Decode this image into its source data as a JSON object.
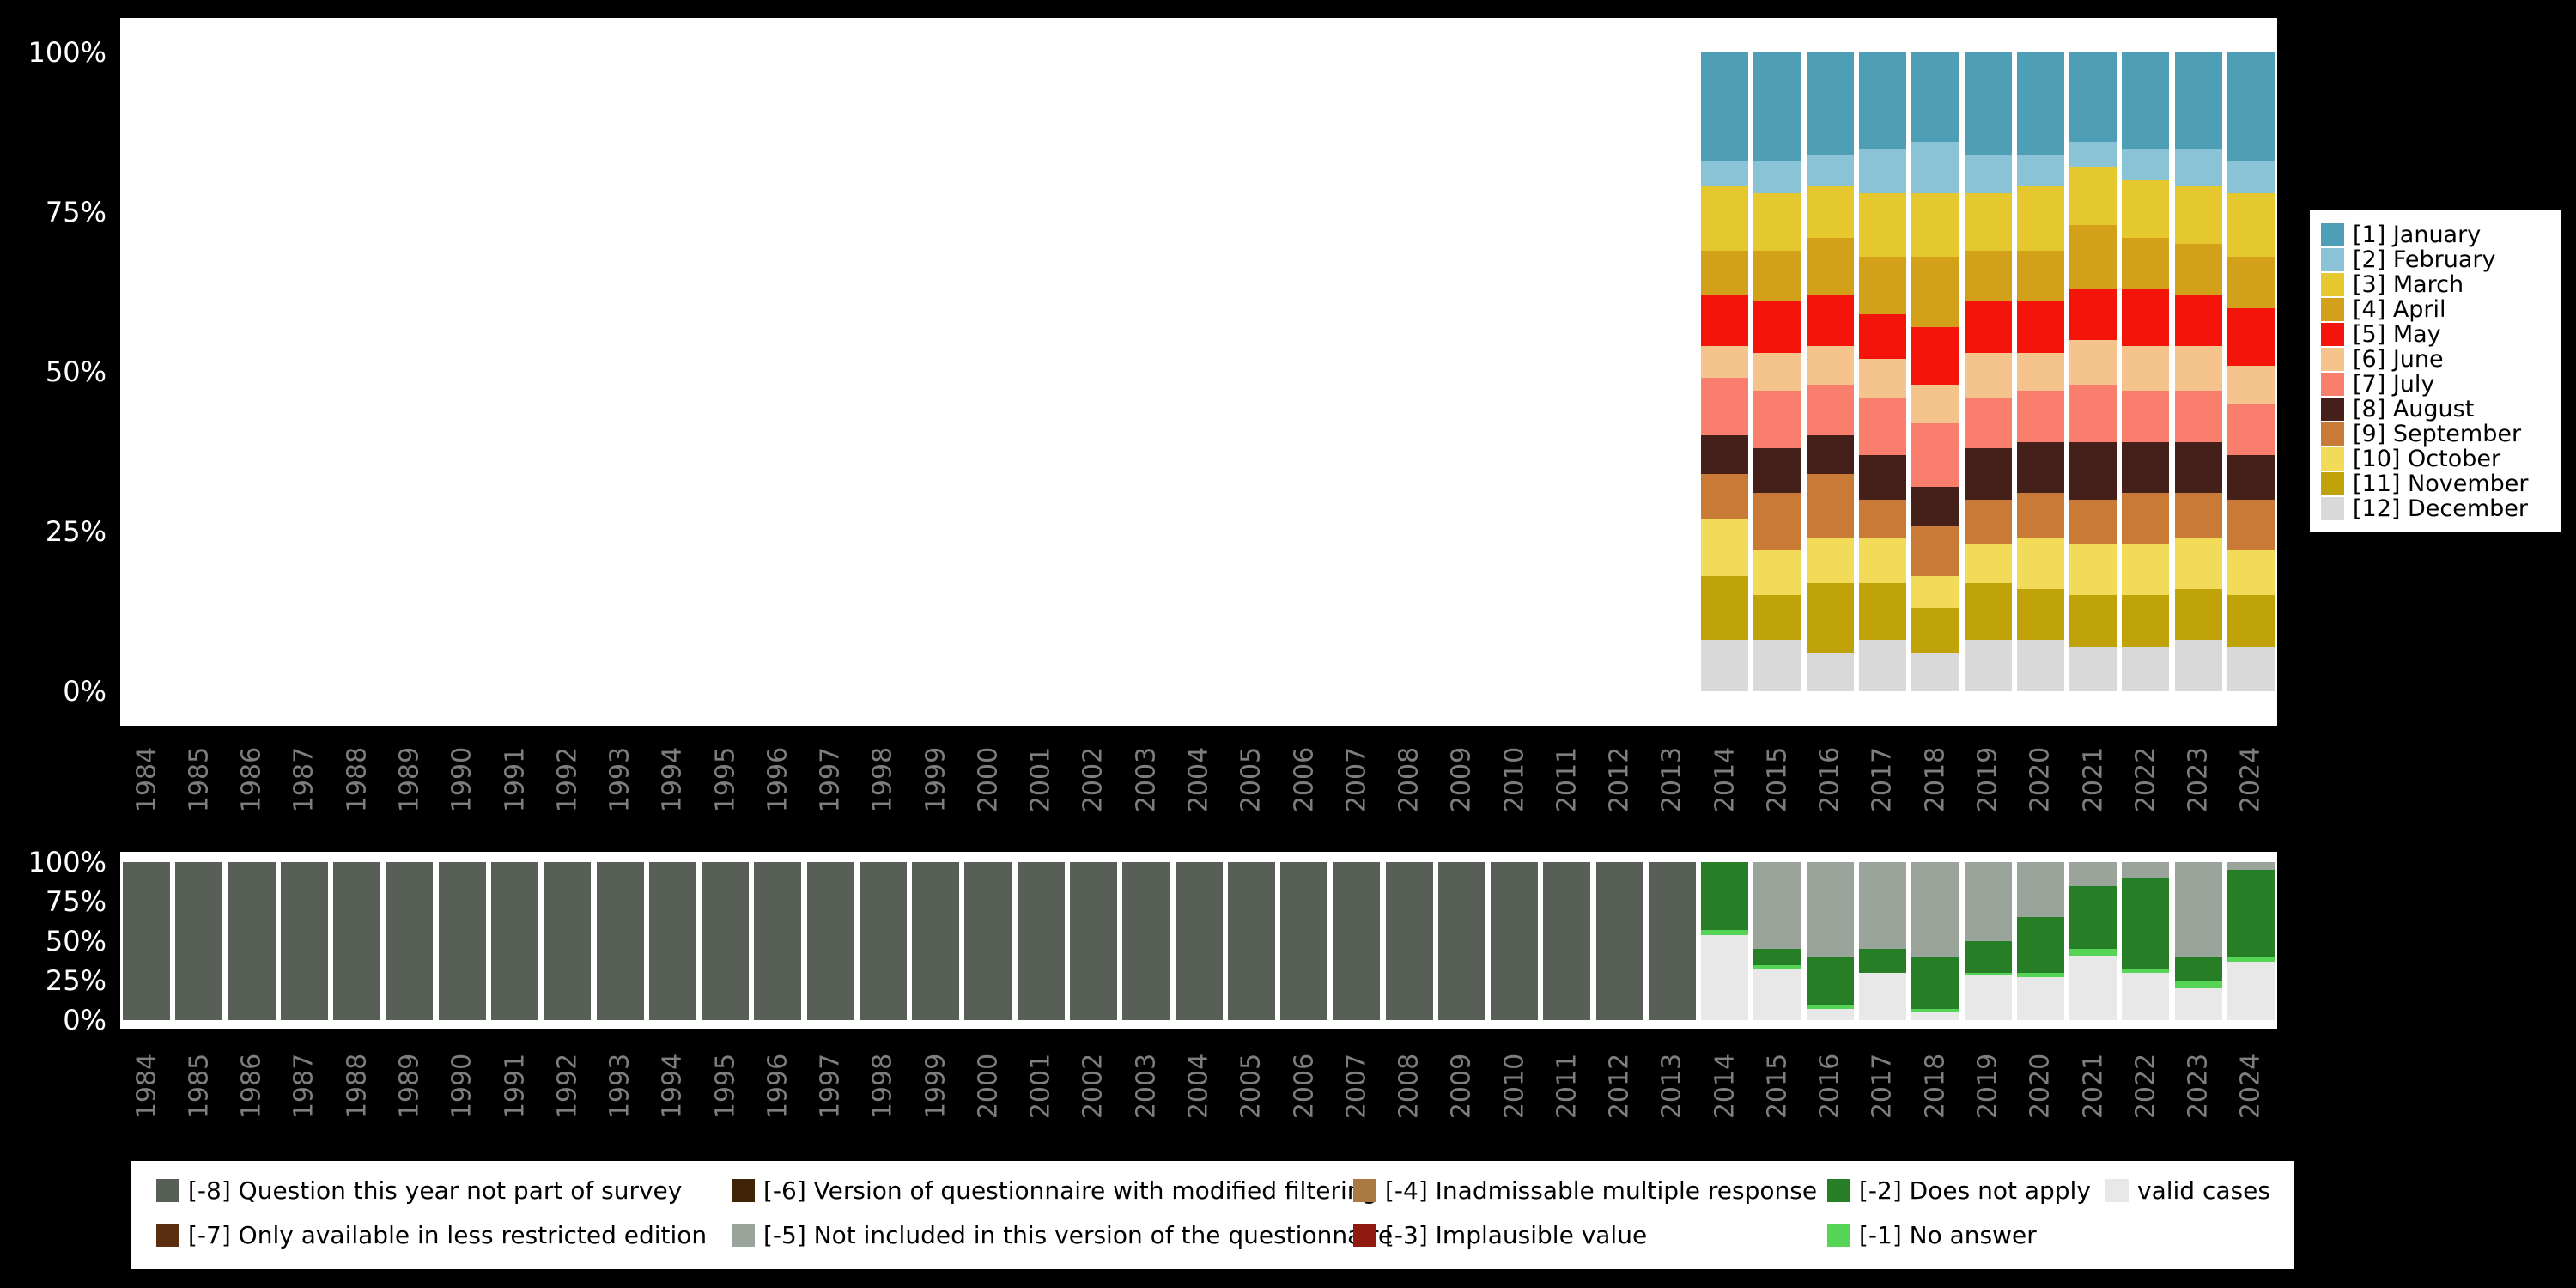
{
  "figure": {
    "background": "#000000",
    "panel_background": "#ffffff",
    "axis_tick_color": "#ffffff",
    "year_label_color": "#7e7e7e"
  },
  "chart_data": [
    {
      "id": "month-distribution",
      "type": "bar",
      "stacked": true,
      "title": "",
      "xlabel": "",
      "ylabel": "",
      "ylim": [
        0,
        100
      ],
      "grid": false,
      "y_tick_labels": [
        "100%",
        "75%",
        "50%",
        "25%",
        "0%"
      ],
      "legend_position": "right",
      "stack_note": "series stacked bottom-to-top in reverse list order (December bottom, January top); years 1984-2013 have no data",
      "categories": [
        "1984",
        "1985",
        "1986",
        "1987",
        "1988",
        "1989",
        "1990",
        "1991",
        "1992",
        "1993",
        "1994",
        "1995",
        "1996",
        "1997",
        "1998",
        "1999",
        "2000",
        "2001",
        "2002",
        "2003",
        "2004",
        "2005",
        "2006",
        "2007",
        "2008",
        "2009",
        "2010",
        "2011",
        "2012",
        "2013",
        "2014",
        "2015",
        "2016",
        "2017",
        "2018",
        "2019",
        "2020",
        "2021",
        "2022",
        "2023",
        "2024"
      ],
      "value_years": [
        "2014",
        "2015",
        "2016",
        "2017",
        "2018",
        "2019",
        "2020",
        "2021",
        "2022",
        "2023",
        "2024"
      ],
      "series": [
        {
          "name": "[1] January",
          "color": "#4E9FB5",
          "values": [
            17,
            17,
            16,
            15,
            14,
            16,
            16,
            14,
            15,
            15,
            17
          ]
        },
        {
          "name": "[2] February",
          "color": "#8BC3D6",
          "values": [
            4,
            5,
            5,
            7,
            8,
            6,
            5,
            4,
            5,
            6,
            5
          ]
        },
        {
          "name": "[3] March",
          "color": "#E5C72E",
          "values": [
            10,
            9,
            8,
            10,
            10,
            9,
            10,
            9,
            9,
            9,
            10
          ]
        },
        {
          "name": "[4] April",
          "color": "#D2A119",
          "values": [
            7,
            8,
            9,
            9,
            11,
            8,
            8,
            10,
            8,
            8,
            8
          ]
        },
        {
          "name": "[5] May",
          "color": "#F5140A",
          "values": [
            8,
            8,
            8,
            7,
            9,
            8,
            8,
            8,
            9,
            8,
            9
          ]
        },
        {
          "name": "[6] June",
          "color": "#F5C48C",
          "values": [
            5,
            6,
            6,
            6,
            6,
            7,
            6,
            7,
            7,
            7,
            6
          ]
        },
        {
          "name": "[7] July",
          "color": "#FA7E6E",
          "values": [
            9,
            9,
            8,
            9,
            10,
            8,
            8,
            9,
            8,
            8,
            8
          ]
        },
        {
          "name": "[8] August",
          "color": "#45201B",
          "values": [
            6,
            7,
            6,
            7,
            6,
            8,
            8,
            9,
            8,
            8,
            7
          ]
        },
        {
          "name": "[9] September",
          "color": "#C97A36",
          "values": [
            7,
            9,
            10,
            6,
            8,
            7,
            7,
            7,
            8,
            7,
            8
          ]
        },
        {
          "name": "[10] October",
          "color": "#F1DB58",
          "values": [
            9,
            7,
            7,
            7,
            5,
            6,
            8,
            8,
            8,
            8,
            7
          ]
        },
        {
          "name": "[11] November",
          "color": "#C0A309",
          "values": [
            10,
            7,
            11,
            9,
            7,
            9,
            8,
            8,
            8,
            8,
            8
          ]
        },
        {
          "name": "[12] December",
          "color": "#D9D9D9",
          "values": [
            8,
            8,
            6,
            8,
            6,
            8,
            8,
            7,
            7,
            8,
            7
          ]
        }
      ]
    },
    {
      "id": "missing-values",
      "type": "bar",
      "stacked": true,
      "title": "",
      "xlabel": "",
      "ylabel": "",
      "ylim": [
        0,
        100
      ],
      "grid": false,
      "y_tick_labels": [
        "100%",
        "75%",
        "50%",
        "25%",
        "0%"
      ],
      "legend_position": "bottom",
      "stack_note": "series stacked bottom-to-top in reverse list order (valid cases bottom, [-8] top)",
      "categories": [
        "1984",
        "1985",
        "1986",
        "1987",
        "1988",
        "1989",
        "1990",
        "1991",
        "1992",
        "1993",
        "1994",
        "1995",
        "1996",
        "1997",
        "1998",
        "1999",
        "2000",
        "2001",
        "2002",
        "2003",
        "2004",
        "2005",
        "2006",
        "2007",
        "2008",
        "2009",
        "2010",
        "2011",
        "2012",
        "2013",
        "2014",
        "2015",
        "2016",
        "2017",
        "2018",
        "2019",
        "2020",
        "2021",
        "2022",
        "2023",
        "2024"
      ],
      "series": [
        {
          "name": "[-8] Question this year not part of survey",
          "color": "#575F56",
          "values": [
            100,
            100,
            100,
            100,
            100,
            100,
            100,
            100,
            100,
            100,
            100,
            100,
            100,
            100,
            100,
            100,
            100,
            100,
            100,
            100,
            100,
            100,
            100,
            100,
            100,
            100,
            100,
            100,
            100,
            100,
            0,
            0,
            0,
            0,
            0,
            0,
            0,
            0,
            0,
            0,
            0
          ]
        },
        {
          "name": "[-5] Not included in this version of the questionnaire",
          "color": "#9BA49B",
          "values": [
            0,
            0,
            0,
            0,
            0,
            0,
            0,
            0,
            0,
            0,
            0,
            0,
            0,
            0,
            0,
            0,
            0,
            0,
            0,
            0,
            0,
            0,
            0,
            0,
            0,
            0,
            0,
            0,
            0,
            0,
            0,
            55,
            60,
            55,
            60,
            50,
            35,
            15,
            10,
            60,
            5
          ]
        },
        {
          "name": "[-2] Does not apply",
          "color": "#267F26",
          "values": [
            0,
            0,
            0,
            0,
            0,
            0,
            0,
            0,
            0,
            0,
            0,
            0,
            0,
            0,
            0,
            0,
            0,
            0,
            0,
            0,
            0,
            0,
            0,
            0,
            0,
            0,
            0,
            0,
            0,
            0,
            43,
            10,
            30,
            15,
            33,
            20,
            35,
            40,
            58,
            15,
            55
          ]
        },
        {
          "name": "[-1] No answer",
          "color": "#55D455",
          "values": [
            0,
            0,
            0,
            0,
            0,
            0,
            0,
            0,
            0,
            0,
            0,
            0,
            0,
            0,
            0,
            0,
            0,
            0,
            0,
            0,
            0,
            0,
            0,
            0,
            0,
            0,
            0,
            0,
            0,
            0,
            3,
            3,
            3,
            0,
            2,
            2,
            3,
            4,
            2,
            5,
            3
          ]
        },
        {
          "name": "valid cases",
          "color": "#E8E8E8",
          "values": [
            0,
            0,
            0,
            0,
            0,
            0,
            0,
            0,
            0,
            0,
            0,
            0,
            0,
            0,
            0,
            0,
            0,
            0,
            0,
            0,
            0,
            0,
            0,
            0,
            0,
            0,
            0,
            0,
            0,
            0,
            54,
            32,
            7,
            30,
            5,
            28,
            27,
            41,
            30,
            20,
            37
          ]
        }
      ],
      "legend": [
        {
          "label": "[-8] Question this year not part of survey",
          "color": "#575F56"
        },
        {
          "label": "[-7] Only available in less restricted edition",
          "color": "#5C2E10"
        },
        {
          "label": "[-6] Version of questionnaire with modified filtering",
          "color": "#3F2408"
        },
        {
          "label": "[-5] Not included in this version of the questionnaire",
          "color": "#9BA49B"
        },
        {
          "label": "[-4] Inadmissable multiple response",
          "color": "#AA7843"
        },
        {
          "label": "[-3] Implausible value",
          "color": "#901910"
        },
        {
          "label": "[-2] Does not apply",
          "color": "#267F26"
        },
        {
          "label": "[-1] No answer",
          "color": "#55D455"
        },
        {
          "label": "valid cases",
          "color": "#E8E8E8"
        }
      ]
    }
  ]
}
